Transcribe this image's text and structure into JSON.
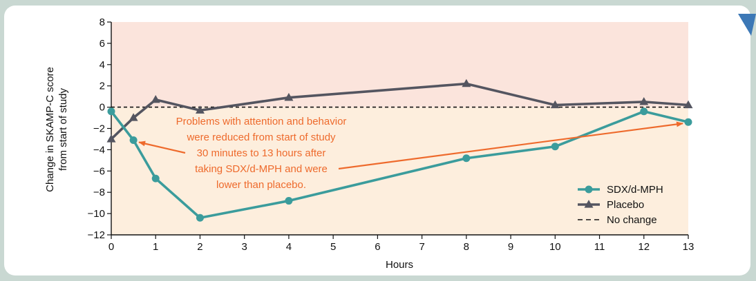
{
  "chart_data": {
    "type": "line",
    "title": "",
    "xlabel": "Hours",
    "ylabel_line1": "Change in SKAMP-C score",
    "ylabel_line2": "from start of study",
    "xlim": [
      0,
      13
    ],
    "ylim": [
      -12,
      8
    ],
    "x_ticks": [
      "0",
      "1",
      "2",
      "3",
      "4",
      "5",
      "6",
      "7",
      "8",
      "9",
      "10",
      "11",
      "12",
      "13"
    ],
    "y_ticks": [
      "8",
      "6",
      "4",
      "2",
      "0",
      "−2",
      "−4",
      "−6",
      "−8",
      "−10",
      "−12"
    ],
    "y_tick_values": [
      8,
      6,
      4,
      2,
      0,
      -2,
      -4,
      -6,
      -8,
      -10,
      -12
    ],
    "series": [
      {
        "name": "SDX/d-MPH",
        "color": "#3b9c9c",
        "marker": "circle",
        "x": [
          0,
          0.5,
          1,
          2,
          4,
          8,
          10,
          12,
          13
        ],
        "y": [
          -0.4,
          -3.1,
          -6.7,
          -10.4,
          -8.8,
          -4.8,
          -3.7,
          -0.4,
          -1.4
        ]
      },
      {
        "name": "Placebo",
        "color": "#545560",
        "marker": "triangle",
        "x": [
          0,
          0.5,
          1,
          2,
          4,
          8,
          10,
          12,
          13
        ],
        "y": [
          -3.0,
          -1.0,
          0.7,
          -0.3,
          0.9,
          2.2,
          0.2,
          0.5,
          0.2
        ]
      }
    ],
    "reference_line": {
      "name": "No change",
      "y": 0,
      "style": "dashed",
      "color": "#111111"
    },
    "bands": {
      "above_zero_color": "#fbe4dc",
      "below_zero_color": "#fdeedd"
    },
    "annotation": {
      "lines": [
        "Problems with attention and behavior",
        "were reduced from start of study",
        "30 minutes to 13 hours after",
        "taking SDX/d-MPH and were",
        "lower than placebo."
      ],
      "color": "#ee6a2c",
      "arrow_targets": [
        {
          "x": 0.5,
          "y": -3.1
        },
        {
          "x": 13,
          "y": -1.4
        }
      ]
    },
    "legend_position": "bottom-right",
    "grid": false
  },
  "colors": {
    "background": "#c9d8d2",
    "card": "#ffffff",
    "axis": "#111111",
    "corner_arrow": "#3c78b6"
  }
}
